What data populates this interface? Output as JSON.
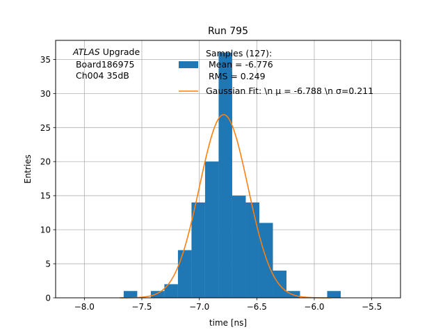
{
  "chart_data": {
    "type": "bar",
    "title": "Run 795",
    "xlabel": "time [ns]",
    "ylabel": "Entries",
    "xlim": [
      -8.25,
      -5.25
    ],
    "ylim": [
      0,
      37.8
    ],
    "grid": true,
    "x_ticks": [
      -8.0,
      -7.5,
      -7.0,
      -6.5,
      -6.0,
      -5.5
    ],
    "x_tick_labels": [
      "−8.0",
      "−7.5",
      "−7.0",
      "−6.5",
      "−6.0",
      "−5.5"
    ],
    "y_ticks": [
      0,
      5,
      10,
      15,
      20,
      25,
      30,
      35
    ],
    "y_tick_labels": [
      "0",
      "5",
      "10",
      "15",
      "20",
      "25",
      "30",
      "35"
    ],
    "histogram": {
      "name_lines": [
        "Samples (127):",
        " Mean = -6.776",
        " RMS = 0.249"
      ],
      "color": "#1f77b4",
      "bin_width": 0.118,
      "bin_lefts": [
        -7.658,
        -7.422,
        -7.304,
        -7.186,
        -7.068,
        -6.95,
        -6.832,
        -6.714,
        -6.596,
        -6.478,
        -6.36,
        -6.242,
        -5.888
      ],
      "counts": [
        1,
        1,
        2,
        7,
        14,
        20,
        36,
        15,
        14,
        11,
        4,
        1,
        1
      ]
    },
    "fit": {
      "name": "Gaussian Fit: \\n μ = -6.788 \\n σ=0.211",
      "color": "#ff7f0e",
      "amplitude": 26.9,
      "mu": -6.788,
      "sigma": 0.211,
      "x_range": [
        -7.69,
        -5.85
      ]
    },
    "legend_placement": "top-center",
    "annotation": {
      "line1_italic": "ATLAS",
      "line1_rest": " Upgrade",
      "line2": " Board186975",
      "line3": " Ch004 35dB"
    }
  }
}
